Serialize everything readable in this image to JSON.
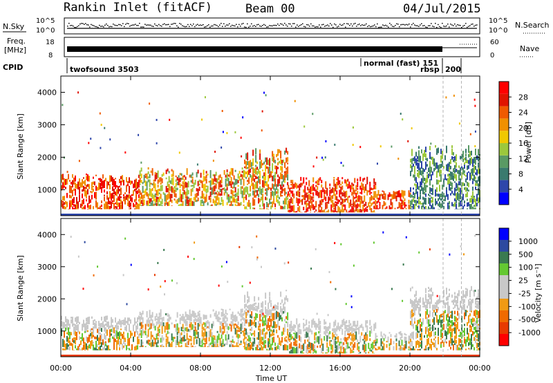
{
  "header": {
    "station": "Rankin Inlet (fitACF)",
    "beam": "Beam 00",
    "date": "04/Jul/2015"
  },
  "status_panel": {
    "nsky_label": "N.Sky",
    "nsky_ticks": [
      "10^5",
      "10^0"
    ],
    "nsearch_label": "N.Search",
    "nsearch_ticks": [
      "10^5",
      "10^0"
    ],
    "freq_label_1": "Freq.",
    "freq_label_2": "[MHz]",
    "freq_ticks": [
      "18",
      "8"
    ],
    "nave_label": "Nave",
    "nave_ticks": [
      "60",
      "0"
    ],
    "cpid_label": "CPID",
    "cpid_entries": [
      "twofsound 3503",
      "normal (fast) 151",
      "rbsp",
      "200"
    ]
  },
  "colors": {
    "power_scale": [
      "#0000ff",
      "#2e46aa",
      "#3a7a6e",
      "#5a9a64",
      "#9cc83c",
      "#f0c800",
      "#f09000",
      "#f05a00",
      "#e01400",
      "#ff0000"
    ],
    "velocity_scale": [
      "#ff0000",
      "#e83a00",
      "#f06a00",
      "#f09a14",
      "#c8c8c8",
      "#c8c8c8",
      "#64c832",
      "#3a7a50",
      "#2e4aa0",
      "#0000ff"
    ]
  },
  "chart_data": [
    {
      "type": "heatmap",
      "name": "power",
      "ylabel": "Slant Range [km]",
      "ylim": [
        200,
        4500
      ],
      "y_ticks": [
        "1000",
        "2000",
        "3000",
        "4000"
      ],
      "x_ticks": [
        "00:00",
        "04:00",
        "08:00",
        "12:00",
        "16:00",
        "20:00",
        "00:00"
      ],
      "colorbar_label": "Power [dB]",
      "colorbar_ticks": [
        "4",
        "8",
        "12",
        "16",
        "20",
        "24",
        "28"
      ],
      "clim": [
        0,
        30
      ],
      "echo_regions": [
        {
          "t_start": 0.0,
          "t_end": 4.5,
          "r_low": 400,
          "r_high": 1500,
          "level": "high"
        },
        {
          "t_start": 4.5,
          "t_end": 10.5,
          "r_low": 500,
          "r_high": 1700,
          "level": "mid"
        },
        {
          "t_start": 10.5,
          "t_end": 13.0,
          "r_low": 400,
          "r_high": 2300,
          "level": "mid"
        },
        {
          "t_start": 13.0,
          "t_end": 18.0,
          "r_low": 300,
          "r_high": 1400,
          "level": "high"
        },
        {
          "t_start": 18.0,
          "t_end": 20.0,
          "r_low": 400,
          "r_high": 1000,
          "level": "high"
        },
        {
          "t_start": 20.0,
          "t_end": 24.0,
          "r_low": 400,
          "r_high": 2400,
          "level": "low"
        }
      ]
    },
    {
      "type": "heatmap",
      "name": "velocity",
      "ylabel": "Slant Range [km]",
      "xlabel": "Time UT",
      "ylim": [
        200,
        4500
      ],
      "y_ticks": [
        "1000",
        "2000",
        "3000",
        "4000"
      ],
      "x_ticks": [
        "00:00",
        "04:00",
        "08:00",
        "12:00",
        "16:00",
        "20:00",
        "00:00"
      ],
      "colorbar_label": "Velocity [m s⁻¹]",
      "colorbar_ticks": [
        "-1000",
        "-500",
        "-100",
        "-25",
        "25",
        "100",
        "500",
        "1000"
      ],
      "clim": [
        -1000,
        1000
      ],
      "echo_regions": [
        {
          "t_start": 0.0,
          "t_end": 4.5,
          "r_low": 400,
          "r_high": 1500,
          "level": "mid"
        },
        {
          "t_start": 4.5,
          "t_end": 10.5,
          "r_low": 500,
          "r_high": 1700,
          "level": "mid"
        },
        {
          "t_start": 10.5,
          "t_end": 13.0,
          "r_low": 400,
          "r_high": 2300,
          "level": "mid"
        },
        {
          "t_start": 13.0,
          "t_end": 18.0,
          "r_low": 300,
          "r_high": 1400,
          "level": "mid"
        },
        {
          "t_start": 18.0,
          "t_end": 20.0,
          "r_low": 400,
          "r_high": 1000,
          "level": "mid"
        },
        {
          "t_start": 20.0,
          "t_end": 24.0,
          "r_low": 400,
          "r_high": 2400,
          "level": "mid"
        }
      ]
    }
  ]
}
